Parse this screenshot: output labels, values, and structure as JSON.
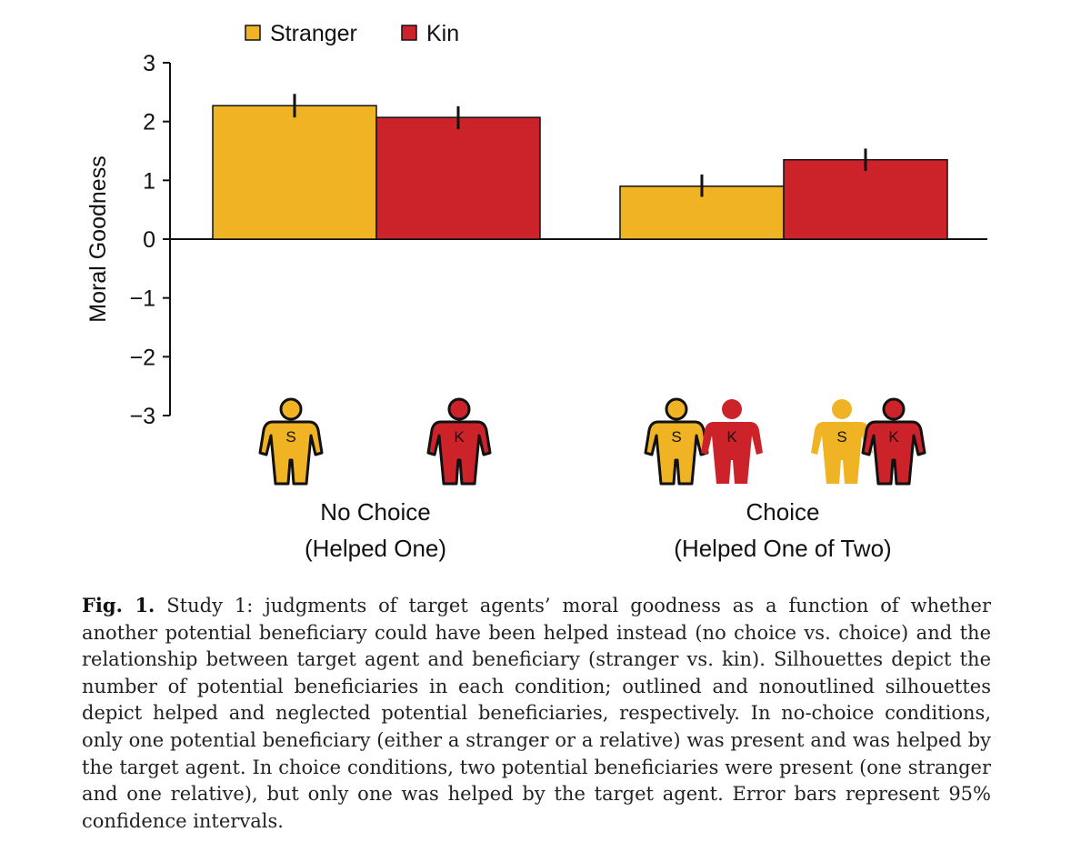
{
  "chart_data": {
    "type": "bar",
    "ylabel": "Moral Goodness",
    "ylim": [
      -3,
      3
    ],
    "yticks": [
      3,
      2,
      1,
      0,
      -1,
      -2,
      -3
    ],
    "ytick_labels": [
      "3",
      "2",
      "1",
      "0",
      "−1",
      "−2",
      "−3"
    ],
    "legend_position": "top-left",
    "categories": [
      {
        "line1": "No Choice",
        "line2": "(Helped One)"
      },
      {
        "line1": "Choice",
        "line2": "(Helped One of Two)"
      }
    ],
    "series": [
      {
        "name": "Stranger",
        "color": "#f0b323",
        "values": [
          2.27,
          0.9
        ],
        "ci_low": [
          2.07,
          0.72
        ],
        "ci_high": [
          2.47,
          1.1
        ]
      },
      {
        "name": "Kin",
        "color": "#cc2229",
        "values": [
          2.07,
          1.35
        ],
        "ci_low": [
          1.87,
          1.16
        ],
        "ci_high": [
          2.26,
          1.54
        ]
      }
    ],
    "silhouettes": [
      {
        "group": 0,
        "letter": "S",
        "color": "#f0b323",
        "outlined": true
      },
      {
        "group": 0,
        "letter": "K",
        "color": "#cc2229",
        "outlined": true
      },
      {
        "group": 1,
        "letter": "S",
        "color": "#f0b323",
        "outlined": true
      },
      {
        "group": 1,
        "letter": "K",
        "color": "#cc2229",
        "outlined": false
      },
      {
        "group": 1,
        "letter": "S",
        "color": "#f0b323",
        "outlined": false
      },
      {
        "group": 1,
        "letter": "K",
        "color": "#cc2229",
        "outlined": true
      }
    ]
  },
  "caption": {
    "label": "Fig. 1.",
    "text": "Study 1: judgments of target agents’ moral goodness as a function of whether another potential beneficiary could have been helped instead (no choice vs. choice) and the relationship between target agent and beneficiary (stranger vs. kin). Silhouettes depict the number of potential beneficiaries in each condition; outlined and nonoutlined silhouettes depict helped and neglected potential beneficiaries, respectively. In no-choice conditions, only one potential beneficiary (either a stranger or a relative) was present and was helped by the target agent. In choice conditions, two potential beneficiaries were present (one stranger and one relative), but only one was helped by the target agent. Error bars represent 95% confidence intervals."
  }
}
